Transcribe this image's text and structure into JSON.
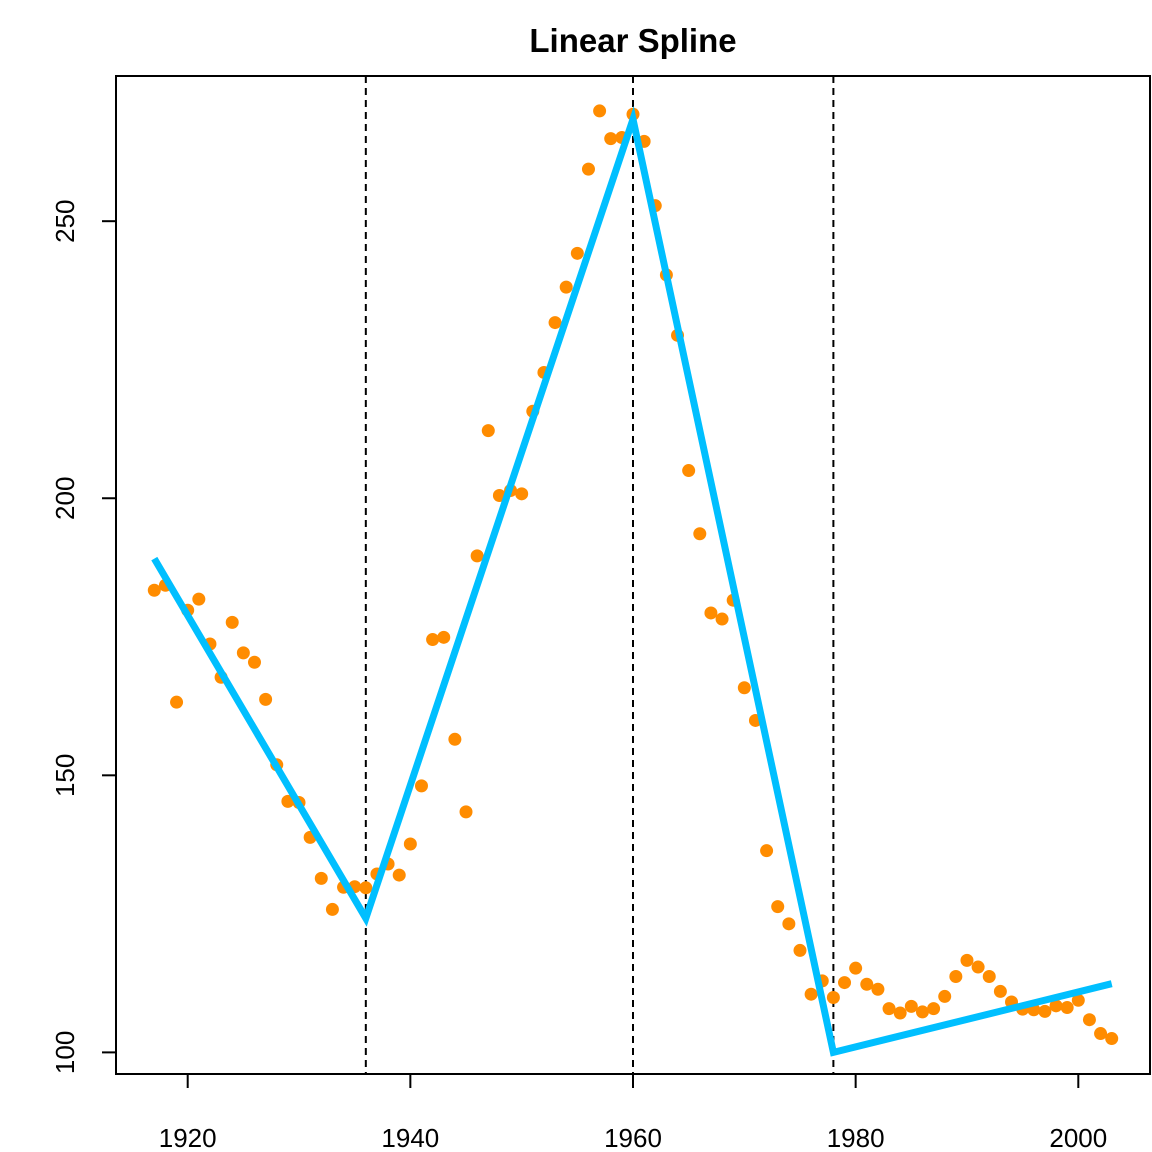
{
  "chart_data": {
    "type": "scatter",
    "title": "Linear Spline",
    "xlabel": "",
    "ylabel": "",
    "xlim": [
      1913.56,
      2006.44
    ],
    "ylim": [
      96.1,
      276.2
    ],
    "x_ticks": [
      1920,
      1940,
      1960,
      1980,
      2000
    ],
    "y_ticks": [
      100,
      150,
      200,
      250
    ],
    "knots": [
      1936,
      1960,
      1978
    ],
    "colors": {
      "points": "#ff8c00",
      "fit": "#00bfff",
      "knot_lines": "#000000"
    },
    "points": {
      "x": [
        1917,
        1918,
        1919,
        1920,
        1921,
        1922,
        1923,
        1924,
        1925,
        1926,
        1927,
        1928,
        1929,
        1930,
        1931,
        1932,
        1933,
        1934,
        1935,
        1936,
        1937,
        1938,
        1939,
        1940,
        1941,
        1942,
        1943,
        1944,
        1945,
        1946,
        1947,
        1948,
        1949,
        1950,
        1951,
        1952,
        1953,
        1954,
        1955,
        1956,
        1957,
        1958,
        1959,
        1960,
        1961,
        1962,
        1963,
        1964,
        1965,
        1966,
        1967,
        1968,
        1969,
        1970,
        1971,
        1972,
        1973,
        1974,
        1975,
        1976,
        1977,
        1978,
        1979,
        1980,
        1981,
        1982,
        1983,
        1984,
        1985,
        1986,
        1987,
        1988,
        1989,
        1990,
        1991,
        1992,
        1993,
        1994,
        1995,
        1996,
        1997,
        1998,
        1999,
        2000,
        2001,
        2002,
        2003
      ],
      "y": [
        183.4,
        184.3,
        163.2,
        179.8,
        181.8,
        173.7,
        167.7,
        177.6,
        172.1,
        170.4,
        163.7,
        151.9,
        145.3,
        145.1,
        138.8,
        131.4,
        125.8,
        129.8,
        129.9,
        129.7,
        132.2,
        134.0,
        132.0,
        137.6,
        148.1,
        174.5,
        174.9,
        156.5,
        143.4,
        189.6,
        212.2,
        200.5,
        201.4,
        200.8,
        215.7,
        222.7,
        231.7,
        238.1,
        244.2,
        259.4,
        269.9,
        264.9,
        265.1,
        269.3,
        264.4,
        252.8,
        240.3,
        229.4,
        205.0,
        193.6,
        179.3,
        178.2,
        181.6,
        165.8,
        159.9,
        136.4,
        126.3,
        123.2,
        118.4,
        110.5,
        112.9,
        109.9,
        112.6,
        115.2,
        112.3,
        111.4,
        107.9,
        107.1,
        108.3,
        107.3,
        107.9,
        110.1,
        113.7,
        116.6,
        115.4,
        113.7,
        111.0,
        109.1,
        107.8,
        107.7,
        107.4,
        108.4,
        108.1,
        109.4,
        105.9,
        103.4,
        102.5
      ]
    },
    "fit": {
      "x": [
        1917,
        1936,
        1960,
        1978,
        2003
      ],
      "y": [
        189.1,
        124.2,
        268.4,
        100.0,
        112.4
      ]
    }
  }
}
